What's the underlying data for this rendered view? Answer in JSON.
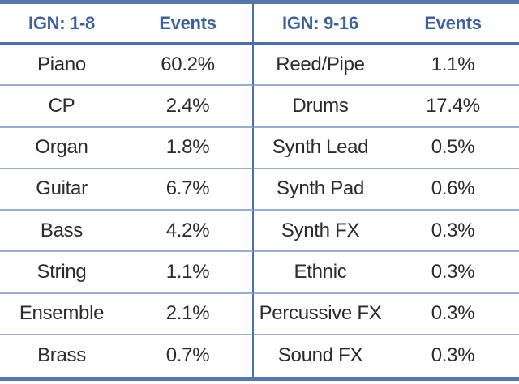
{
  "table": {
    "left": {
      "header": {
        "group": "IGN: 1-8",
        "events": "Events"
      },
      "rows": [
        {
          "name": "Piano",
          "events": "60.2%"
        },
        {
          "name": "CP",
          "events": "2.4%"
        },
        {
          "name": "Organ",
          "events": "1.8%"
        },
        {
          "name": "Guitar",
          "events": "6.7%"
        },
        {
          "name": "Bass",
          "events": "4.2%"
        },
        {
          "name": "String",
          "events": "1.1%"
        },
        {
          "name": "Ensemble",
          "events": "2.1%"
        },
        {
          "name": "Brass",
          "events": "0.7%"
        }
      ]
    },
    "right": {
      "header": {
        "group": "IGN: 9-16",
        "events": "Events"
      },
      "rows": [
        {
          "name": "Reed/Pipe",
          "events": "1.1%"
        },
        {
          "name": "Drums",
          "events": "17.4%"
        },
        {
          "name": "Synth Lead",
          "events": "0.5%"
        },
        {
          "name": "Synth Pad",
          "events": "0.6%"
        },
        {
          "name": "Synth FX",
          "events": "0.3%"
        },
        {
          "name": "Ethnic",
          "events": "0.3%"
        },
        {
          "name": "Percussive FX",
          "events": "0.3%"
        },
        {
          "name": "Sound FX",
          "events": "0.3%"
        }
      ]
    }
  },
  "colors": {
    "header_text": "#3D629A",
    "body_text": "#2B2B2B",
    "thick_border": "#5578A8",
    "header_rule": "#4C70A3",
    "center_divider": "#4C70A3",
    "row_separator": "#9AAECB",
    "background": "#FFFFFF"
  }
}
